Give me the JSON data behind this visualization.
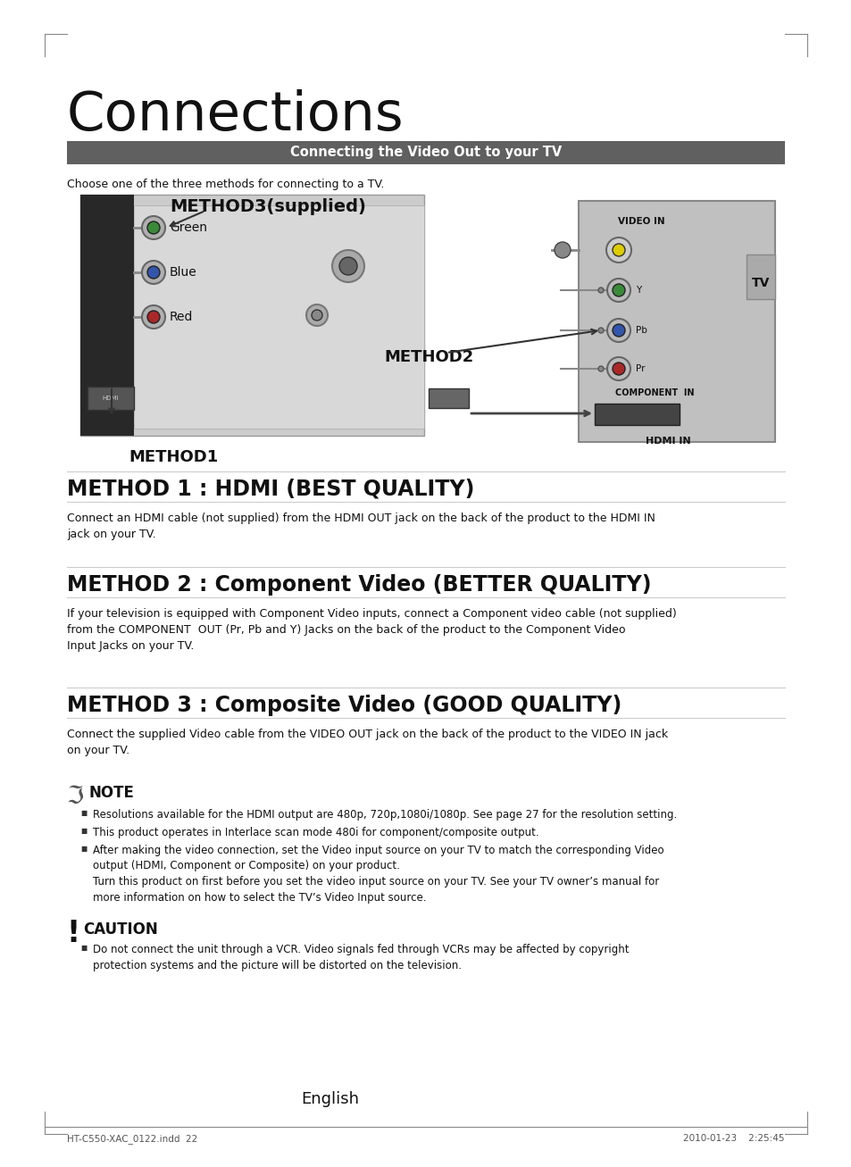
{
  "bg_color": "#ffffff",
  "title_connections": "Connections",
  "header_bar_text": "Connecting the Video Out to your TV",
  "header_bar_color": "#606060",
  "header_bar_text_color": "#ffffff",
  "intro_text": "Choose one of the three methods for connecting to a TV.",
  "method1_heading": "METHOD 1 : HDMI (BEST QUALITY)",
  "method1_body": "Connect an HDMI cable (not supplied) from the HDMI OUT jack on the back of the product to the HDMI IN\njack on your TV.",
  "method2_heading": "METHOD 2 : Component Video (BETTER QUALITY)",
  "method2_body": "If your television is equipped with Component Video inputs, connect a Component video cable (not supplied)\nfrom the COMPONENT  OUT (Pr, Pb and Y) Jacks on the back of the product to the Component Video\nInput Jacks on your TV.",
  "method3_heading": "METHOD 3 : Composite Video (GOOD QUALITY)",
  "method3_body": "Connect the supplied Video cable from the VIDEO OUT jack on the back of the product to the VIDEO IN jack\non your TV.",
  "note_heading": "NOTE",
  "note_bullet1": "Resolutions available for the HDMI output are 480p, 720p,1080i/1080p. See page 27 for the resolution setting.",
  "note_bullet2": "This product operates in Interlace scan mode 480i for component/composite output.",
  "note_bullet3a": "After making the video connection, set the Video input source on your TV to match the corresponding Video\noutput (HDMI, Component or Composite) on your product.",
  "note_bullet3b": "Turn this product on first before you set the video input source on your TV. See your TV owner’s manual for\nmore information on how to select the TV’s Video Input source.",
  "caution_heading": "CAUTION",
  "caution_bullet1": "Do not connect the unit through a VCR. Video signals fed through VCRs may be affected by copyright\nprotection systems and the picture will be distorted on the television.",
  "english_text": "English",
  "footer_left": "HT-C550-XAC_0122.indd  22",
  "footer_right": "2010-01-23    2:25:45"
}
